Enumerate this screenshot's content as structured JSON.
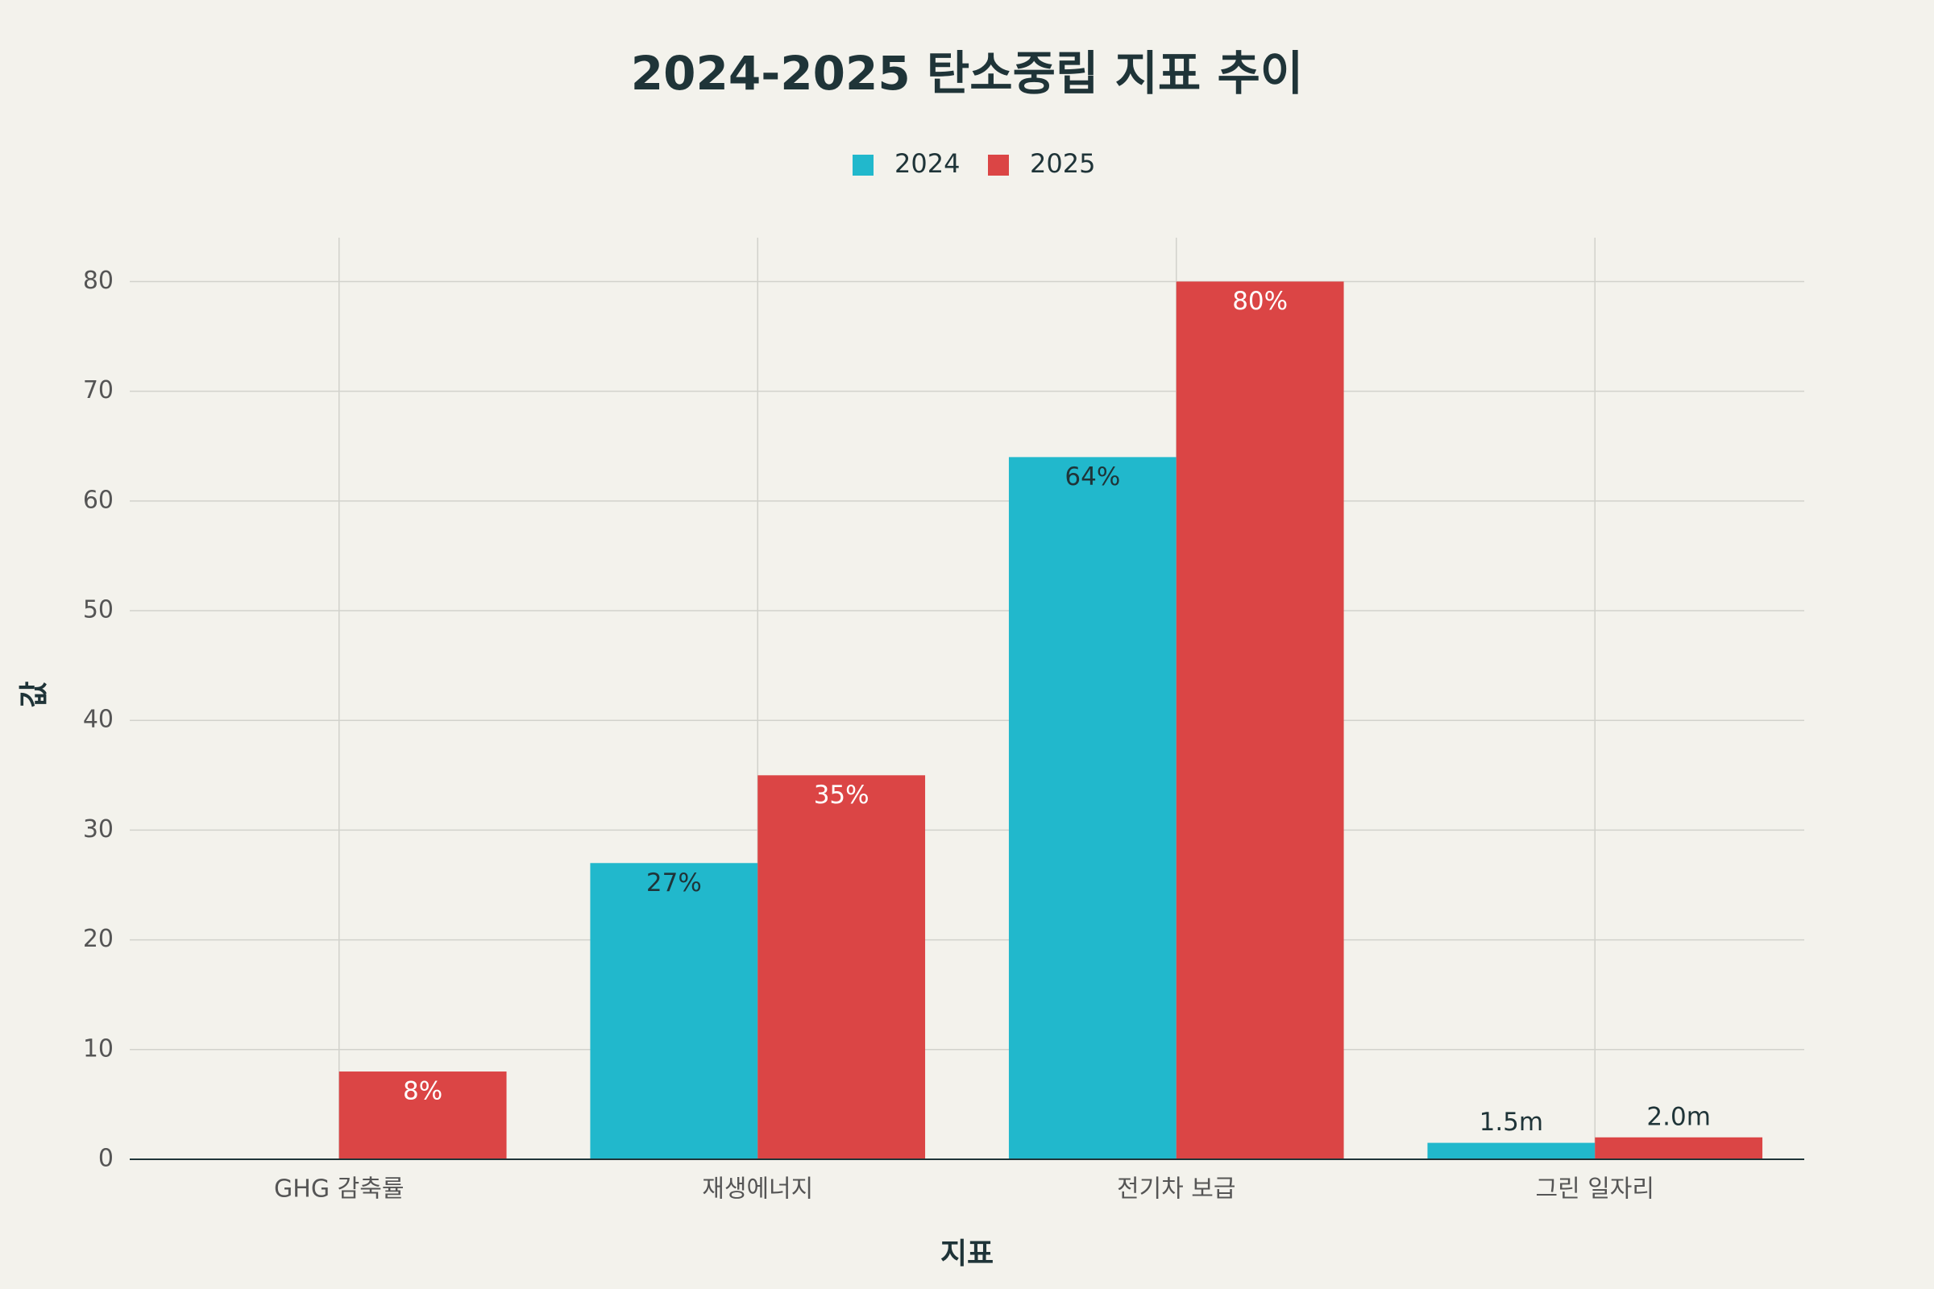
{
  "chart_data": {
    "type": "bar",
    "title": "2024-2025 탄소중립 지표 추이",
    "x_label": "지표",
    "y_label": "값",
    "categories": [
      "GHG 감축률",
      "재생에너지",
      "전기차 보급",
      "그린 일자리"
    ],
    "series": [
      {
        "name": "2024",
        "color": "#21b8cc",
        "values": [
          null,
          27,
          64,
          1.5
        ],
        "value_labels": [
          null,
          "27%",
          "64%",
          "1.5m"
        ]
      },
      {
        "name": "2025",
        "color": "#db4545",
        "values": [
          8,
          35,
          80,
          2.0
        ],
        "value_labels": [
          "8%",
          "35%",
          "80%",
          "2.0m"
        ]
      }
    ],
    "ylim": [
      0,
      84
    ],
    "yticks": [
      0,
      10,
      20,
      30,
      40,
      50,
      60,
      70,
      80
    ],
    "grid": true,
    "legend": "top"
  }
}
